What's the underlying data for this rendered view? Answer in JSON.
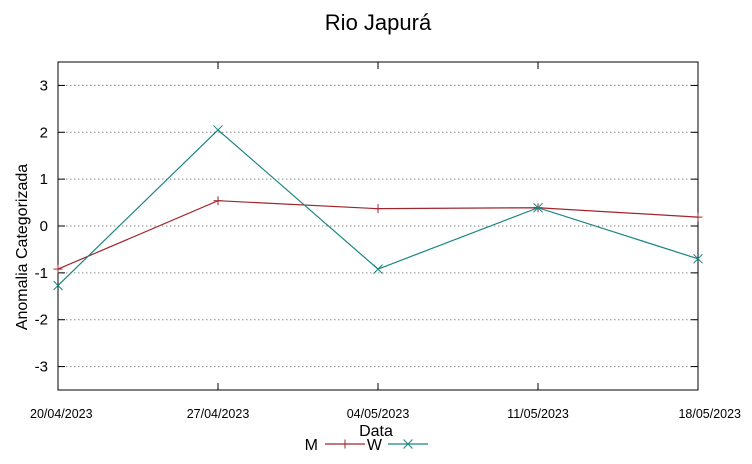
{
  "chart_data": {
    "type": "line",
    "title": "Rio Japurá",
    "xlabel": "Data",
    "ylabel": "Anomalia Categorizada",
    "categories": [
      "20/04/2023",
      "27/04/2023",
      "04/05/2023",
      "11/05/2023",
      "18/05/2023"
    ],
    "ylim": [
      -3.5,
      3.5
    ],
    "yticks": [
      3,
      2,
      1,
      0,
      -1,
      -2,
      -3
    ],
    "ytick_labels": [
      "3",
      "2",
      "1",
      "0",
      "-1",
      "-2",
      "-3"
    ],
    "grid": true,
    "legend_position": "bottom-center",
    "series": [
      {
        "name": "M",
        "color": "#a0262c",
        "marker": "plus",
        "values": [
          -0.92,
          0.54,
          0.37,
          0.39,
          0.19
        ]
      },
      {
        "name": "W",
        "color": "#1a8484",
        "marker": "x",
        "values": [
          -1.27,
          2.05,
          -0.92,
          0.39,
          -0.7
        ]
      }
    ]
  }
}
